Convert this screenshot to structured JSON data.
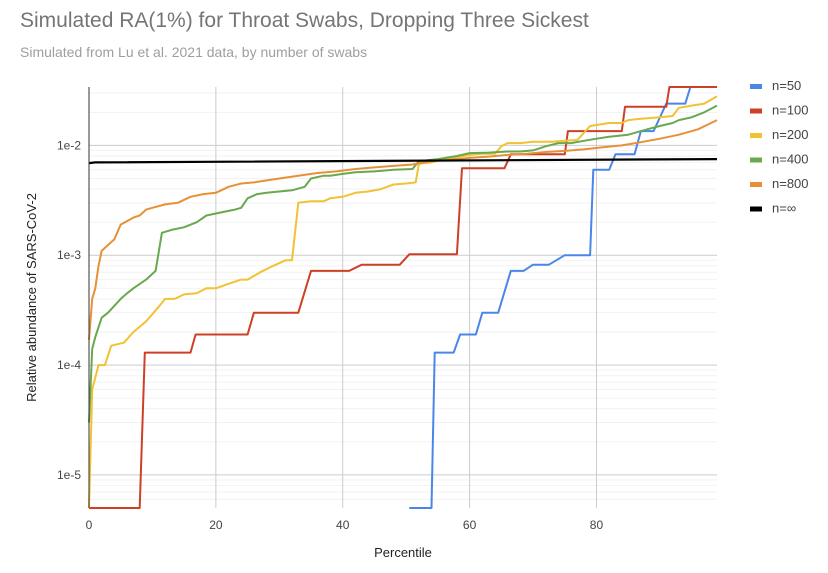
{
  "chart_data": {
    "type": "line",
    "title": "Simulated RA(1%) for Throat Swabs, Dropping Three Sickest",
    "subtitle": "Simulated from Lu et al. 2021 data, by number of swabs",
    "xlabel": "Percentile",
    "ylabel": "Relative abundance of SARS-CoV-2",
    "xlim": [
      0,
      99
    ],
    "ylim": [
      5e-06,
      0.034
    ],
    "yscale": "log",
    "x_ticks": [
      0,
      20,
      40,
      60,
      80
    ],
    "y_ticks": [
      {
        "value": 1e-05,
        "label": "1e-5"
      },
      {
        "value": 0.0001,
        "label": "1e-4"
      },
      {
        "value": 0.001,
        "label": "1e-3"
      },
      {
        "value": 0.01,
        "label": "1e-2"
      }
    ],
    "grid": true,
    "legend_position": "right",
    "series": [
      {
        "name": "n=50",
        "color": "#4a86e8",
        "points": [
          [
            50.5,
            5e-06
          ],
          [
            54,
            5e-06
          ],
          [
            54.5,
            0.00013
          ],
          [
            57.5,
            0.00013
          ],
          [
            58.5,
            0.00019
          ],
          [
            61,
            0.00019
          ],
          [
            62,
            0.0003
          ],
          [
            64.5,
            0.0003
          ],
          [
            66.5,
            0.00072
          ],
          [
            68.5,
            0.00072
          ],
          [
            70,
            0.00082
          ],
          [
            72.5,
            0.00082
          ],
          [
            75,
            0.001
          ],
          [
            79,
            0.001
          ],
          [
            79.5,
            0.006
          ],
          [
            82,
            0.006
          ],
          [
            83,
            0.0083
          ],
          [
            86,
            0.0083
          ],
          [
            87,
            0.0135
          ],
          [
            89,
            0.0135
          ],
          [
            91,
            0.024
          ],
          [
            94,
            0.024
          ],
          [
            94.8,
            0.034
          ],
          [
            99,
            0.034
          ]
        ]
      },
      {
        "name": "n=100",
        "color": "#cc4125",
        "points": [
          [
            0,
            5e-06
          ],
          [
            8,
            5e-06
          ],
          [
            8.8,
            0.00013
          ],
          [
            16,
            0.00013
          ],
          [
            16.8,
            0.00019
          ],
          [
            25,
            0.00019
          ],
          [
            26,
            0.0003
          ],
          [
            33,
            0.0003
          ],
          [
            35,
            0.00072
          ],
          [
            41,
            0.00072
          ],
          [
            43,
            0.00082
          ],
          [
            49,
            0.00082
          ],
          [
            50.5,
            0.00102
          ],
          [
            58,
            0.00102
          ],
          [
            58.8,
            0.0062
          ],
          [
            65.5,
            0.0062
          ],
          [
            66.5,
            0.0083
          ],
          [
            75,
            0.0083
          ],
          [
            75.5,
            0.0135
          ],
          [
            84,
            0.0135
          ],
          [
            84.5,
            0.0225
          ],
          [
            91,
            0.0225
          ],
          [
            91.5,
            0.034
          ],
          [
            99,
            0.034
          ]
        ]
      },
      {
        "name": "n=200",
        "color": "#f1c232",
        "points": [
          [
            0,
            5e-06
          ],
          [
            0.5,
            6e-05
          ],
          [
            1.5,
            0.0001
          ],
          [
            2.5,
            0.0001
          ],
          [
            3.5,
            0.00015
          ],
          [
            5.5,
            0.00016
          ],
          [
            7,
            0.0002
          ],
          [
            9,
            0.00025
          ],
          [
            11,
            0.00034
          ],
          [
            12,
            0.0004
          ],
          [
            13.5,
            0.0004
          ],
          [
            15,
            0.00044
          ],
          [
            17,
            0.00045
          ],
          [
            18.5,
            0.0005
          ],
          [
            20,
            0.0005
          ],
          [
            22,
            0.00055
          ],
          [
            24,
            0.0006
          ],
          [
            25,
            0.0006
          ],
          [
            27,
            0.0007
          ],
          [
            29,
            0.0008
          ],
          [
            31,
            0.0009
          ],
          [
            32,
            0.0009
          ],
          [
            33,
            0.003
          ],
          [
            35,
            0.0031
          ],
          [
            37,
            0.0031
          ],
          [
            38,
            0.0033
          ],
          [
            40,
            0.0034
          ],
          [
            42,
            0.0037
          ],
          [
            44,
            0.0038
          ],
          [
            46,
            0.004
          ],
          [
            48,
            0.0044
          ],
          [
            50,
            0.0045
          ],
          [
            51.5,
            0.0046
          ],
          [
            52,
            0.0068
          ],
          [
            54,
            0.007
          ],
          [
            56,
            0.0075
          ],
          [
            58,
            0.0078
          ],
          [
            60,
            0.0082
          ],
          [
            62,
            0.0084
          ],
          [
            64,
            0.0084
          ],
          [
            65,
            0.0098
          ],
          [
            66,
            0.0105
          ],
          [
            68,
            0.0105
          ],
          [
            70,
            0.0108
          ],
          [
            73,
            0.0108
          ],
          [
            75,
            0.011
          ],
          [
            77,
            0.0112
          ],
          [
            79,
            0.015
          ],
          [
            82,
            0.016
          ],
          [
            84,
            0.016
          ],
          [
            85,
            0.017
          ],
          [
            87,
            0.0175
          ],
          [
            90,
            0.018
          ],
          [
            92,
            0.0185
          ],
          [
            93,
            0.022
          ],
          [
            95,
            0.023
          ],
          [
            97,
            0.024
          ],
          [
            99,
            0.028
          ]
        ]
      },
      {
        "name": "n=400",
        "color": "#6aa84f",
        "points": [
          [
            0,
            3e-05
          ],
          [
            0.5,
            0.00014
          ],
          [
            1,
            0.00018
          ],
          [
            2,
            0.00027
          ],
          [
            3,
            0.0003
          ],
          [
            5,
            0.0004
          ],
          [
            6,
            0.00045
          ],
          [
            7,
            0.0005
          ],
          [
            9,
            0.0006
          ],
          [
            10.5,
            0.00072
          ],
          [
            11.5,
            0.0016
          ],
          [
            13,
            0.0017
          ],
          [
            15,
            0.0018
          ],
          [
            17,
            0.002
          ],
          [
            18.5,
            0.0023
          ],
          [
            20,
            0.0024
          ],
          [
            21.5,
            0.0025
          ],
          [
            23,
            0.0026
          ],
          [
            24,
            0.0027
          ],
          [
            25,
            0.0033
          ],
          [
            26.5,
            0.0036
          ],
          [
            28,
            0.0037
          ],
          [
            30,
            0.0038
          ],
          [
            32,
            0.0039
          ],
          [
            34,
            0.0042
          ],
          [
            35,
            0.005
          ],
          [
            37,
            0.0053
          ],
          [
            38,
            0.0053
          ],
          [
            40,
            0.0055
          ],
          [
            42,
            0.0057
          ],
          [
            45,
            0.0058
          ],
          [
            48,
            0.006
          ],
          [
            51,
            0.0061
          ],
          [
            52,
            0.0072
          ],
          [
            55,
            0.0075
          ],
          [
            58,
            0.008
          ],
          [
            60,
            0.0085
          ],
          [
            63,
            0.0086
          ],
          [
            66,
            0.0088
          ],
          [
            68,
            0.0088
          ],
          [
            70,
            0.009
          ],
          [
            72,
            0.0098
          ],
          [
            74,
            0.0105
          ],
          [
            76,
            0.0105
          ],
          [
            78,
            0.011
          ],
          [
            80,
            0.0115
          ],
          [
            82,
            0.012
          ],
          [
            85,
            0.0125
          ],
          [
            86,
            0.013
          ],
          [
            88,
            0.014
          ],
          [
            90,
            0.015
          ],
          [
            92,
            0.016
          ],
          [
            93,
            0.017
          ],
          [
            95,
            0.018
          ],
          [
            97,
            0.02
          ],
          [
            99,
            0.023
          ]
        ]
      },
      {
        "name": "n=800",
        "color": "#e69138",
        "points": [
          [
            0,
            0.00017
          ],
          [
            0.5,
            0.0004
          ],
          [
            1,
            0.0005
          ],
          [
            1.5,
            0.0008
          ],
          [
            2,
            0.0011
          ],
          [
            4,
            0.0014
          ],
          [
            5,
            0.0019
          ],
          [
            7,
            0.0022
          ],
          [
            8,
            0.0023
          ],
          [
            9,
            0.0026
          ],
          [
            10,
            0.0027
          ],
          [
            12,
            0.0029
          ],
          [
            14,
            0.003
          ],
          [
            16,
            0.0034
          ],
          [
            18,
            0.0036
          ],
          [
            20,
            0.0037
          ],
          [
            22,
            0.0042
          ],
          [
            24,
            0.0045
          ],
          [
            26,
            0.0046
          ],
          [
            28,
            0.0048
          ],
          [
            30,
            0.005
          ],
          [
            33,
            0.0053
          ],
          [
            36,
            0.0056
          ],
          [
            39,
            0.0058
          ],
          [
            42,
            0.0061
          ],
          [
            45,
            0.0063
          ],
          [
            48,
            0.0065
          ],
          [
            51,
            0.0067
          ],
          [
            54,
            0.0072
          ],
          [
            57,
            0.0074
          ],
          [
            60,
            0.0077
          ],
          [
            63,
            0.0079
          ],
          [
            66,
            0.0082
          ],
          [
            69,
            0.0084
          ],
          [
            72,
            0.0087
          ],
          [
            75,
            0.0089
          ],
          [
            78,
            0.0092
          ],
          [
            81,
            0.0096
          ],
          [
            84,
            0.01
          ],
          [
            87,
            0.0107
          ],
          [
            90,
            0.0115
          ],
          [
            93,
            0.0125
          ],
          [
            96,
            0.014
          ],
          [
            99,
            0.017
          ]
        ]
      },
      {
        "name": "n=∞",
        "color": "#000000",
        "points": [
          [
            0,
            0.0069
          ],
          [
            1,
            0.007
          ],
          [
            99,
            0.0075
          ]
        ]
      }
    ]
  }
}
